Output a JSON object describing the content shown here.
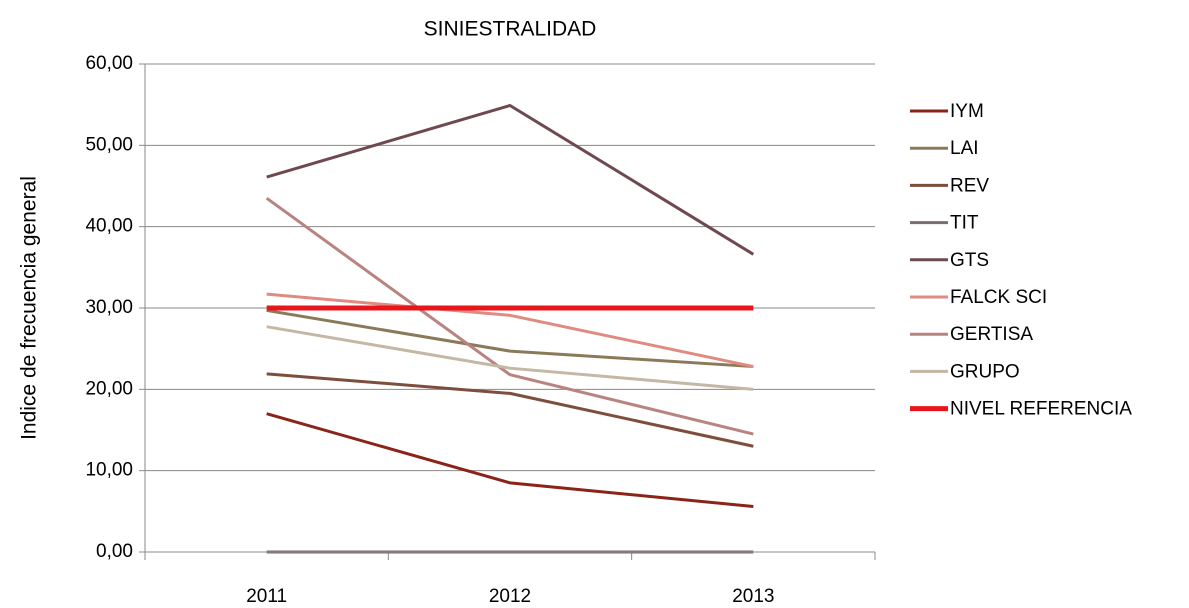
{
  "chart_data": {
    "type": "line",
    "title": "SINIESTRALIDAD",
    "y_label": "Indice de frecuencia general",
    "categories": [
      "2011",
      "2012",
      "2013"
    ],
    "series": [
      {
        "name": "IYM",
        "color": "#8b2318",
        "values": [
          17.0,
          8.5,
          5.6
        ]
      },
      {
        "name": "LAI",
        "color": "#8b7a5a",
        "values": [
          29.7,
          24.7,
          22.8
        ]
      },
      {
        "name": "REV",
        "color": "#7d4e3c",
        "values": [
          21.9,
          19.5,
          13.0
        ]
      },
      {
        "name": "TIT",
        "color": "#7a6e72",
        "values": [
          0,
          0,
          0
        ]
      },
      {
        "name": "GTS",
        "color": "#6e4a50",
        "values": [
          46.1,
          54.9,
          36.6
        ]
      },
      {
        "name": "FALCK SCI",
        "color": "#e08a80",
        "values": [
          31.7,
          29.1,
          22.8
        ]
      },
      {
        "name": "GERTISA",
        "color": "#b98380",
        "values": [
          43.5,
          21.8,
          14.5
        ]
      },
      {
        "name": "GRUPO",
        "color": "#c4b8a5",
        "values": [
          27.7,
          22.6,
          20.0
        ]
      },
      {
        "name": "NIVEL REFERENCIA",
        "color": "#e8151b",
        "values": [
          30,
          30,
          30
        ]
      }
    ],
    "ylim": [
      0,
      60
    ],
    "yticks": [
      {
        "value": 0,
        "label": "0,00"
      },
      {
        "value": 10,
        "label": "10,00"
      },
      {
        "value": 20,
        "label": "20,00"
      },
      {
        "value": 30,
        "label": "30,00"
      },
      {
        "value": 40,
        "label": "40,00"
      },
      {
        "value": 50,
        "label": "50,00"
      },
      {
        "value": 60,
        "label": "60,00"
      }
    ],
    "grid": true,
    "legend": "right"
  }
}
